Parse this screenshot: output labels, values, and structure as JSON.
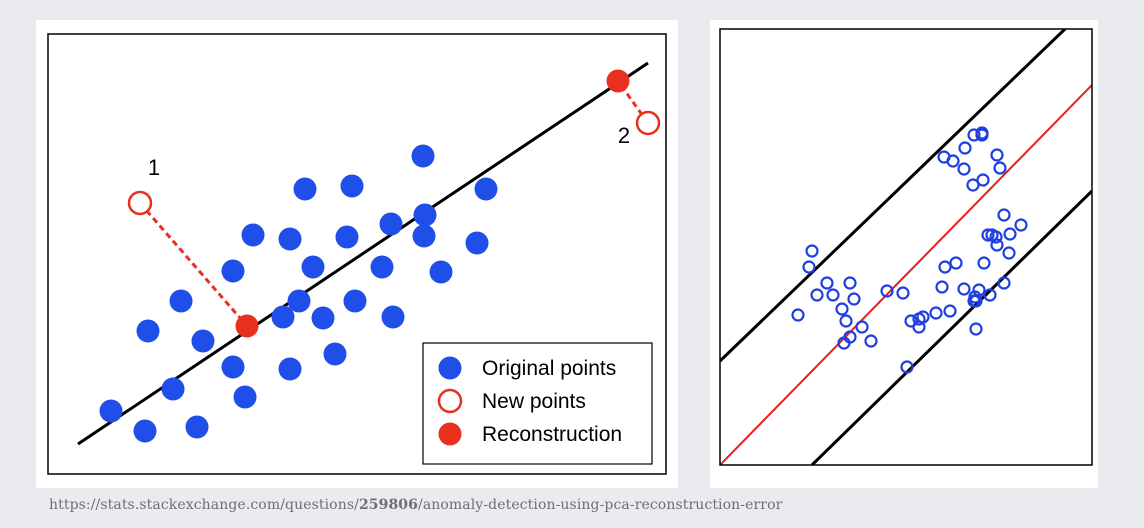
{
  "charts": [
    {
      "type": "scatter",
      "title": "",
      "xlabel": "",
      "ylabel": "",
      "xlim": [
        0,
        600
      ],
      "ylim": [
        0,
        410
      ],
      "grid": false,
      "legend_position": "bottom-right",
      "colors": {
        "original": "#1f4fe8",
        "new": "#e8301e",
        "reconstruction": "#e8301e",
        "fit_line": "#000000",
        "error_line": "#e8301e"
      },
      "chart_data": {
        "type": "scatter",
        "series": [
          {
            "name": "Original points",
            "marker": "filled",
            "points": [
              [
                48,
                48
              ],
              [
                82,
                28
              ],
              [
                134,
                32
              ],
              [
                110,
                70
              ],
              [
                182,
                62
              ],
              [
                170,
                92
              ],
              [
                227,
                90
              ],
              [
                272,
                105
              ],
              [
                140,
                118
              ],
              [
                85,
                128
              ],
              [
                118,
                158
              ],
              [
                220,
                142
              ],
              [
                260,
                141
              ],
              [
                236,
                158
              ],
              [
                292,
                158
              ],
              [
                330,
                142
              ],
              [
                170,
                188
              ],
              [
                190,
                224
              ],
              [
                227,
                220
              ],
              [
                250,
                192
              ],
              [
                284,
                222
              ],
              [
                319,
                192
              ],
              [
                242,
                270
              ],
              [
                289,
                273
              ],
              [
                361,
                223
              ],
              [
                328,
                235
              ],
              [
                378,
                187
              ],
              [
                414,
                216
              ],
              [
                362,
                244
              ],
              [
                360,
                303
              ],
              [
                423,
                270
              ]
            ]
          },
          {
            "name": "New points",
            "marker": "hollow",
            "points": [
              [
                77,
                256
              ],
              [
                585,
                336
              ]
            ],
            "labels": [
              "1",
              "2"
            ]
          },
          {
            "name": "Reconstruction",
            "marker": "filled",
            "points": [
              [
                184,
                133
              ],
              [
                555,
                378
              ]
            ]
          }
        ],
        "fit_line": [
          [
            15,
            15
          ],
          [
            585,
            396
          ]
        ],
        "error_segments": [
          [
            [
              77,
              256
            ],
            [
              184,
              133
            ]
          ],
          [
            [
              585,
              336
            ],
            [
              555,
              378
            ]
          ]
        ]
      }
    },
    {
      "type": "scatter",
      "title": "",
      "xlabel": "",
      "ylabel": "",
      "xlim": [
        0,
        372
      ],
      "ylim": [
        0,
        436
      ],
      "grid": false,
      "legend_position": "none",
      "colors": {
        "points": "#1f3fe0",
        "center_line": "#e81e1e",
        "boundary_lines": "#000000"
      },
      "chart_data": {
        "type": "scatter",
        "series": [
          {
            "marker": "hollow",
            "points": [
              [
                92,
                214
              ],
              [
                89,
                198
              ],
              [
                107,
                182
              ],
              [
                97,
                170
              ],
              [
                113,
                170
              ],
              [
                130,
                182
              ],
              [
                134,
                166
              ],
              [
                122,
                156
              ],
              [
                126,
                144
              ],
              [
                130,
                128
              ],
              [
                142,
                138
              ],
              [
                151,
                124
              ],
              [
                124,
                122
              ],
              [
                78,
                150
              ],
              [
                167,
                174
              ],
              [
                183,
                172
              ],
              [
                187,
                98
              ],
              [
                191,
                144
              ],
              [
                199,
                146
              ],
              [
                199,
                138
              ],
              [
                203,
                148
              ],
              [
                216,
                152
              ],
              [
                230,
                154
              ],
              [
                222,
                178
              ],
              [
                225,
                198
              ],
              [
                236,
                202
              ],
              [
                244,
                176
              ],
              [
                254,
                164
              ],
              [
                264,
                202
              ],
              [
                270,
                170
              ],
              [
                259,
                175
              ],
              [
                256,
                164
              ],
              [
                255,
                168
              ],
              [
                256,
                136
              ],
              [
                284,
                182
              ],
              [
                289,
                212
              ],
              [
                276,
                228
              ],
              [
                301,
                240
              ],
              [
                268,
                230
              ],
              [
                272,
                230
              ],
              [
                277,
                220
              ],
              [
                290,
                231
              ],
              [
                284,
                250
              ],
              [
                253,
                280
              ],
              [
                263,
                285
              ],
              [
                244,
                296
              ],
              [
                233,
                304
              ],
              [
                224,
                308
              ],
              [
                245,
                317
              ],
              [
                254,
                330
              ],
              [
                262,
                332
              ],
              [
                277,
                310
              ],
              [
                280,
                297
              ],
              [
                262,
                330
              ]
            ]
          }
        ],
        "center_line": [
          [
            0,
            0
          ],
          [
            372,
            380
          ]
        ],
        "upper_boundary": [
          [
            0,
            104
          ],
          [
            345,
            436
          ]
        ],
        "lower_boundary": [
          [
            92,
            0
          ],
          [
            372,
            274
          ]
        ]
      }
    }
  ],
  "legend": {
    "items": [
      {
        "label": "Original points",
        "marker": "filled",
        "color": "#1f4fe8"
      },
      {
        "label": "New points",
        "marker": "hollow",
        "color": "#e8301e"
      },
      {
        "label": "Reconstruction",
        "marker": "filled",
        "color": "#e8301e"
      }
    ]
  },
  "source": {
    "prefix": "https://stats.stackexchange.com/questions/",
    "bold": "259806",
    "suffix": "/anomaly-detection-using-pca-reconstruction-error"
  }
}
